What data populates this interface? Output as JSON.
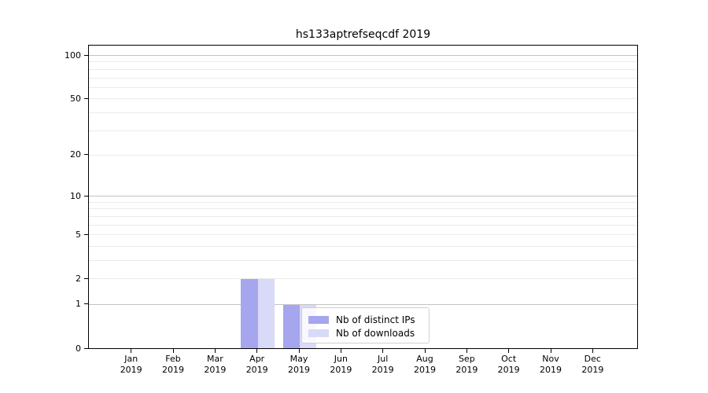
{
  "chart_data": {
    "type": "bar",
    "title": "hs133aptrefseqcdf 2019",
    "year": "2019",
    "categories": [
      "Jan",
      "Feb",
      "Mar",
      "Apr",
      "May",
      "Jun",
      "Jul",
      "Aug",
      "Sep",
      "Oct",
      "Nov",
      "Dec"
    ],
    "series": [
      {
        "name": "Nb of distinct IPs",
        "color": "#a6a6ee",
        "values": [
          0,
          0,
          0,
          2,
          1,
          0,
          0,
          0,
          0,
          0,
          0,
          0
        ]
      },
      {
        "name": "Nb of downloads",
        "color": "#d9d9f8",
        "values": [
          0,
          0,
          0,
          2,
          1,
          0,
          0,
          0,
          0,
          0,
          0,
          0
        ]
      }
    ],
    "yscale": "log1p",
    "ylim": [
      0,
      117
    ],
    "yticks": [
      0,
      1,
      2,
      5,
      10,
      20,
      50,
      100
    ],
    "grid": {
      "major_lines": [
        1,
        10,
        100
      ],
      "minor_lines": [
        2,
        3,
        4,
        5,
        6,
        7,
        8,
        9,
        20,
        30,
        40,
        50,
        60,
        70,
        80,
        90
      ],
      "major_color": "#c3c3c3",
      "minor_color": "#ebebeb"
    },
    "legend_position": "lower center (over May bars)",
    "axis_color": "#000000",
    "background_color": "#ffffff"
  }
}
